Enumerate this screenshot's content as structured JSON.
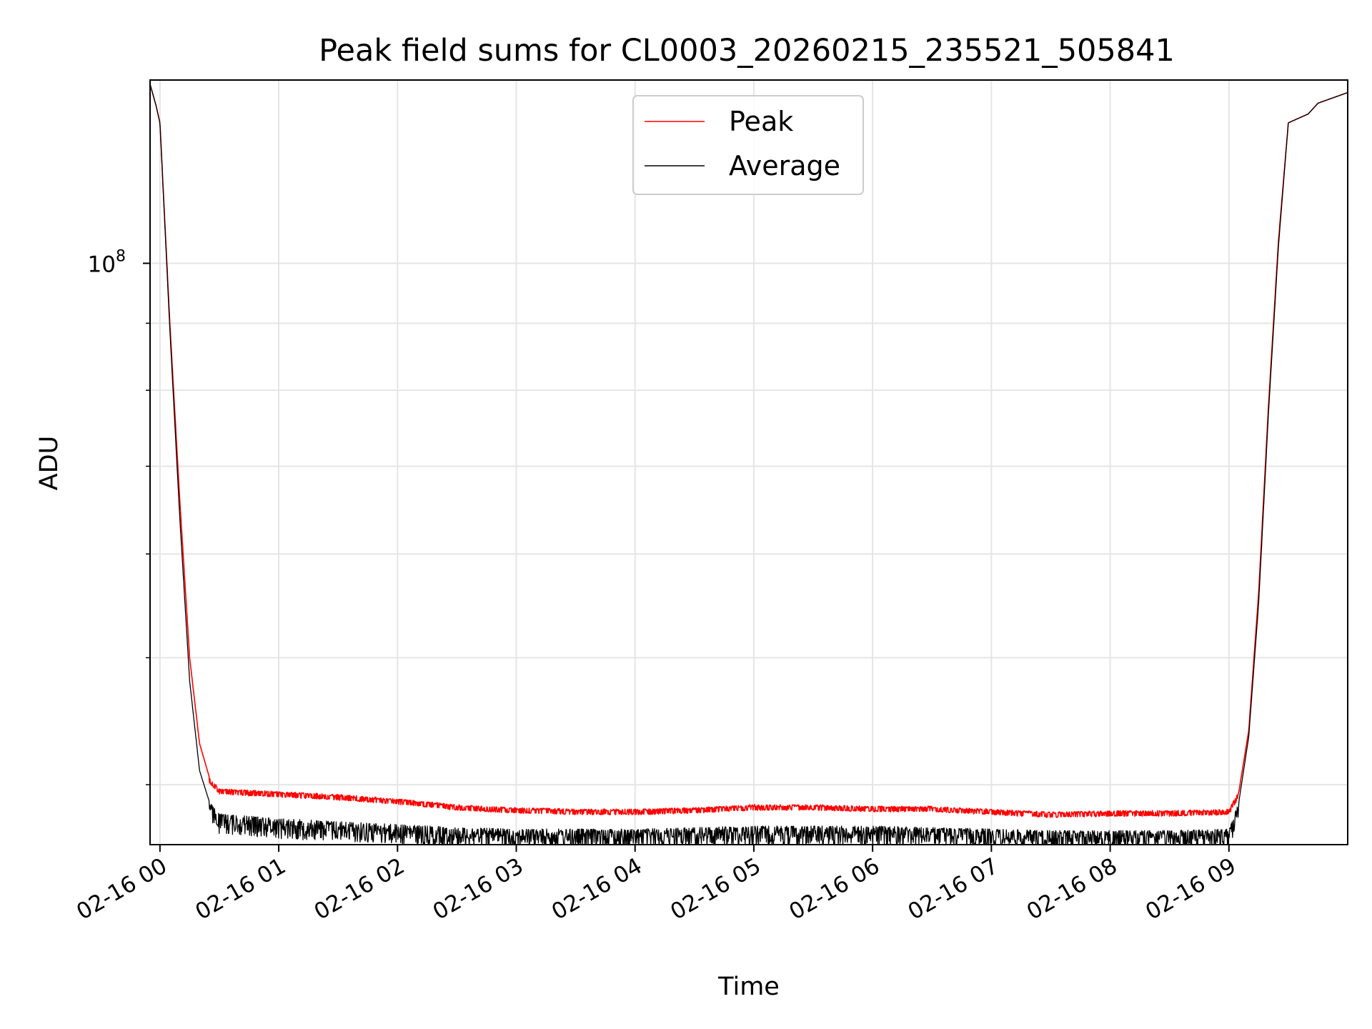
{
  "chart_data": {
    "type": "line",
    "title": "Peak field sums for CL0003_20260215_235521_505841",
    "xlabel": "Time",
    "ylabel": "ADU",
    "y_scale": "log",
    "grid": true,
    "legend_position": "top-center",
    "x_range": [
      "2026-02-15 23:55",
      "2026-02-16 10:00"
    ],
    "y_range": [
      36000000,
      138000000
    ],
    "x_ticks": [
      {
        "time": "2026-02-16 00:00",
        "label": "02-16 00"
      },
      {
        "time": "2026-02-16 01:00",
        "label": "02-16 01"
      },
      {
        "time": "2026-02-16 02:00",
        "label": "02-16 02"
      },
      {
        "time": "2026-02-16 03:00",
        "label": "02-16 03"
      },
      {
        "time": "2026-02-16 04:00",
        "label": "02-16 04"
      },
      {
        "time": "2026-02-16 05:00",
        "label": "02-16 05"
      },
      {
        "time": "2026-02-16 06:00",
        "label": "02-16 06"
      },
      {
        "time": "2026-02-16 07:00",
        "label": "02-16 07"
      },
      {
        "time": "2026-02-16 08:00",
        "label": "02-16 08"
      },
      {
        "time": "2026-02-16 09:00",
        "label": "02-16 09"
      }
    ],
    "y_major_tick": {
      "value": 100000000,
      "base": "10",
      "exponent": "8"
    },
    "y_minor_ticks": [
      40000000,
      50000000,
      60000000,
      70000000,
      80000000,
      90000000
    ],
    "series": [
      {
        "name": "Peak",
        "color": "#ff0000",
        "points": [
          [
            "2026-02-15 23:55",
            137000000
          ],
          [
            "2026-02-15 23:58",
            132000000
          ],
          [
            "2026-02-16 00:00",
            128000000
          ],
          [
            "2026-02-16 00:05",
            90000000
          ],
          [
            "2026-02-16 00:10",
            66000000
          ],
          [
            "2026-02-16 00:15",
            50000000
          ],
          [
            "2026-02-16 00:20",
            43000000
          ],
          [
            "2026-02-16 00:25",
            40500000
          ],
          [
            "2026-02-16 00:30",
            39700000
          ],
          [
            "2026-02-16 01:00",
            39500000
          ],
          [
            "2026-02-16 01:30",
            39300000
          ],
          [
            "2026-02-16 02:00",
            39000000
          ],
          [
            "2026-02-16 02:30",
            38600000
          ],
          [
            "2026-02-16 03:00",
            38400000
          ],
          [
            "2026-02-16 03:30",
            38300000
          ],
          [
            "2026-02-16 04:00",
            38300000
          ],
          [
            "2026-02-16 04:30",
            38400000
          ],
          [
            "2026-02-16 05:00",
            38600000
          ],
          [
            "2026-02-16 05:30",
            38600000
          ],
          [
            "2026-02-16 06:00",
            38500000
          ],
          [
            "2026-02-16 06:30",
            38500000
          ],
          [
            "2026-02-16 07:00",
            38300000
          ],
          [
            "2026-02-16 07:30",
            38100000
          ],
          [
            "2026-02-16 08:00",
            38200000
          ],
          [
            "2026-02-16 08:30",
            38200000
          ],
          [
            "2026-02-16 09:00",
            38300000
          ],
          [
            "2026-02-16 09:05",
            39500000
          ],
          [
            "2026-02-16 09:10",
            44000000
          ],
          [
            "2026-02-16 09:15",
            56000000
          ],
          [
            "2026-02-16 09:20",
            78000000
          ],
          [
            "2026-02-16 09:25",
            104000000
          ],
          [
            "2026-02-16 09:30",
            128000000
          ],
          [
            "2026-02-16 09:35",
            129000000
          ],
          [
            "2026-02-16 09:40",
            130000000
          ],
          [
            "2026-02-16 09:45",
            132500000
          ],
          [
            "2026-02-16 10:00",
            135000000
          ]
        ]
      },
      {
        "name": "Average",
        "color": "#000000",
        "points": [
          [
            "2026-02-15 23:55",
            137000000
          ],
          [
            "2026-02-15 23:58",
            132000000
          ],
          [
            "2026-02-16 00:00",
            128000000
          ],
          [
            "2026-02-16 00:05",
            89000000
          ],
          [
            "2026-02-16 00:10",
            64000000
          ],
          [
            "2026-02-16 00:15",
            48000000
          ],
          [
            "2026-02-16 00:20",
            41000000
          ],
          [
            "2026-02-16 00:25",
            38800000
          ],
          [
            "2026-02-16 00:30",
            38000000
          ],
          [
            "2026-02-16 01:00",
            37700000
          ],
          [
            "2026-02-16 01:30",
            37500000
          ],
          [
            "2026-02-16 02:00",
            37300000
          ],
          [
            "2026-02-16 02:30",
            37100000
          ],
          [
            "2026-02-16 03:00",
            37000000
          ],
          [
            "2026-02-16 03:30",
            37000000
          ],
          [
            "2026-02-16 04:00",
            37000000
          ],
          [
            "2026-02-16 04:30",
            37100000
          ],
          [
            "2026-02-16 05:00",
            37200000
          ],
          [
            "2026-02-16 05:30",
            37200000
          ],
          [
            "2026-02-16 06:00",
            37200000
          ],
          [
            "2026-02-16 06:30",
            37100000
          ],
          [
            "2026-02-16 07:00",
            37000000
          ],
          [
            "2026-02-16 07:30",
            36900000
          ],
          [
            "2026-02-16 08:00",
            36900000
          ],
          [
            "2026-02-16 08:30",
            36900000
          ],
          [
            "2026-02-16 09:00",
            37000000
          ],
          [
            "2026-02-16 09:05",
            38800000
          ],
          [
            "2026-02-16 09:10",
            43500000
          ],
          [
            "2026-02-16 09:15",
            55000000
          ],
          [
            "2026-02-16 09:20",
            77000000
          ],
          [
            "2026-02-16 09:25",
            103000000
          ],
          [
            "2026-02-16 09:30",
            128000000
          ],
          [
            "2026-02-16 09:35",
            129000000
          ],
          [
            "2026-02-16 09:40",
            130000000
          ],
          [
            "2026-02-16 09:45",
            132500000
          ],
          [
            "2026-02-16 10:00",
            135000000
          ]
        ]
      }
    ]
  }
}
